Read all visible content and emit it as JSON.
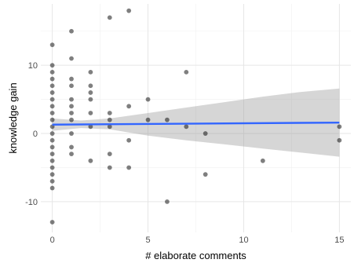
{
  "chart_data": {
    "type": "scatter",
    "xlabel": "# elaborate comments",
    "ylabel": "knowledge gain",
    "xlim": [
      -0.6,
      15.6
    ],
    "ylim": [
      -14.5,
      19
    ],
    "x_ticks": [
      0,
      5,
      10,
      15
    ],
    "y_ticks": [
      -10,
      0,
      10
    ],
    "grid": true,
    "theme": "minimal",
    "point_color": "#000000",
    "point_alpha": 0.5,
    "points": [
      {
        "x": 0,
        "y": 13
      },
      {
        "x": 0,
        "y": 10
      },
      {
        "x": 0,
        "y": 9
      },
      {
        "x": 0,
        "y": 8
      },
      {
        "x": 0,
        "y": 7
      },
      {
        "x": 0,
        "y": 6
      },
      {
        "x": 0,
        "y": 5
      },
      {
        "x": 0,
        "y": 4
      },
      {
        "x": 0,
        "y": 3
      },
      {
        "x": 0,
        "y": 2
      },
      {
        "x": 0,
        "y": 1
      },
      {
        "x": 0,
        "y": 0
      },
      {
        "x": 0,
        "y": -1
      },
      {
        "x": 0,
        "y": -2
      },
      {
        "x": 0,
        "y": -3
      },
      {
        "x": 0,
        "y": -4
      },
      {
        "x": 0,
        "y": -5
      },
      {
        "x": 0,
        "y": -6
      },
      {
        "x": 0,
        "y": -7
      },
      {
        "x": 0,
        "y": -8
      },
      {
        "x": 0,
        "y": -13
      },
      {
        "x": 1,
        "y": 15
      },
      {
        "x": 1,
        "y": 11
      },
      {
        "x": 1,
        "y": 8
      },
      {
        "x": 1,
        "y": 7
      },
      {
        "x": 1,
        "y": 5
      },
      {
        "x": 1,
        "y": 4
      },
      {
        "x": 1,
        "y": 3
      },
      {
        "x": 1,
        "y": 2
      },
      {
        "x": 1,
        "y": 0
      },
      {
        "x": 1,
        "y": -2
      },
      {
        "x": 1,
        "y": -3
      },
      {
        "x": 2,
        "y": 9
      },
      {
        "x": 2,
        "y": 7
      },
      {
        "x": 2,
        "y": 6
      },
      {
        "x": 2,
        "y": 5
      },
      {
        "x": 2,
        "y": 3
      },
      {
        "x": 2,
        "y": 1
      },
      {
        "x": 2,
        "y": -4
      },
      {
        "x": 3,
        "y": 17
      },
      {
        "x": 3,
        "y": 3
      },
      {
        "x": 3,
        "y": 2
      },
      {
        "x": 3,
        "y": 1
      },
      {
        "x": 3,
        "y": -3
      },
      {
        "x": 3,
        "y": -5
      },
      {
        "x": 4,
        "y": 18
      },
      {
        "x": 4,
        "y": 4
      },
      {
        "x": 4,
        "y": -1
      },
      {
        "x": 4,
        "y": -5
      },
      {
        "x": 5,
        "y": 5
      },
      {
        "x": 5,
        "y": 2
      },
      {
        "x": 6,
        "y": 2
      },
      {
        "x": 6,
        "y": -10
      },
      {
        "x": 7,
        "y": 9
      },
      {
        "x": 7,
        "y": 1
      },
      {
        "x": 8,
        "y": 0
      },
      {
        "x": 8,
        "y": -6
      },
      {
        "x": 11,
        "y": -4
      },
      {
        "x": 15,
        "y": 1
      },
      {
        "x": 15,
        "y": -1
      }
    ],
    "trend_line": {
      "method": "lm",
      "color": "#3366ff",
      "x": [
        0,
        15
      ],
      "y": [
        1.3,
        1.6
      ]
    },
    "confidence_band": {
      "color": "#999999",
      "alpha": 0.4,
      "x": [
        0,
        1.5,
        3,
        5,
        7,
        9,
        11,
        13,
        15
      ],
      "lower": [
        0.4,
        0.8,
        0.6,
        -0.3,
        -1.0,
        -1.6,
        -2.2,
        -2.8,
        -3.4
      ],
      "upper": [
        2.2,
        1.9,
        2.2,
        3.0,
        3.8,
        4.6,
        5.4,
        6.1,
        6.6
      ]
    }
  }
}
